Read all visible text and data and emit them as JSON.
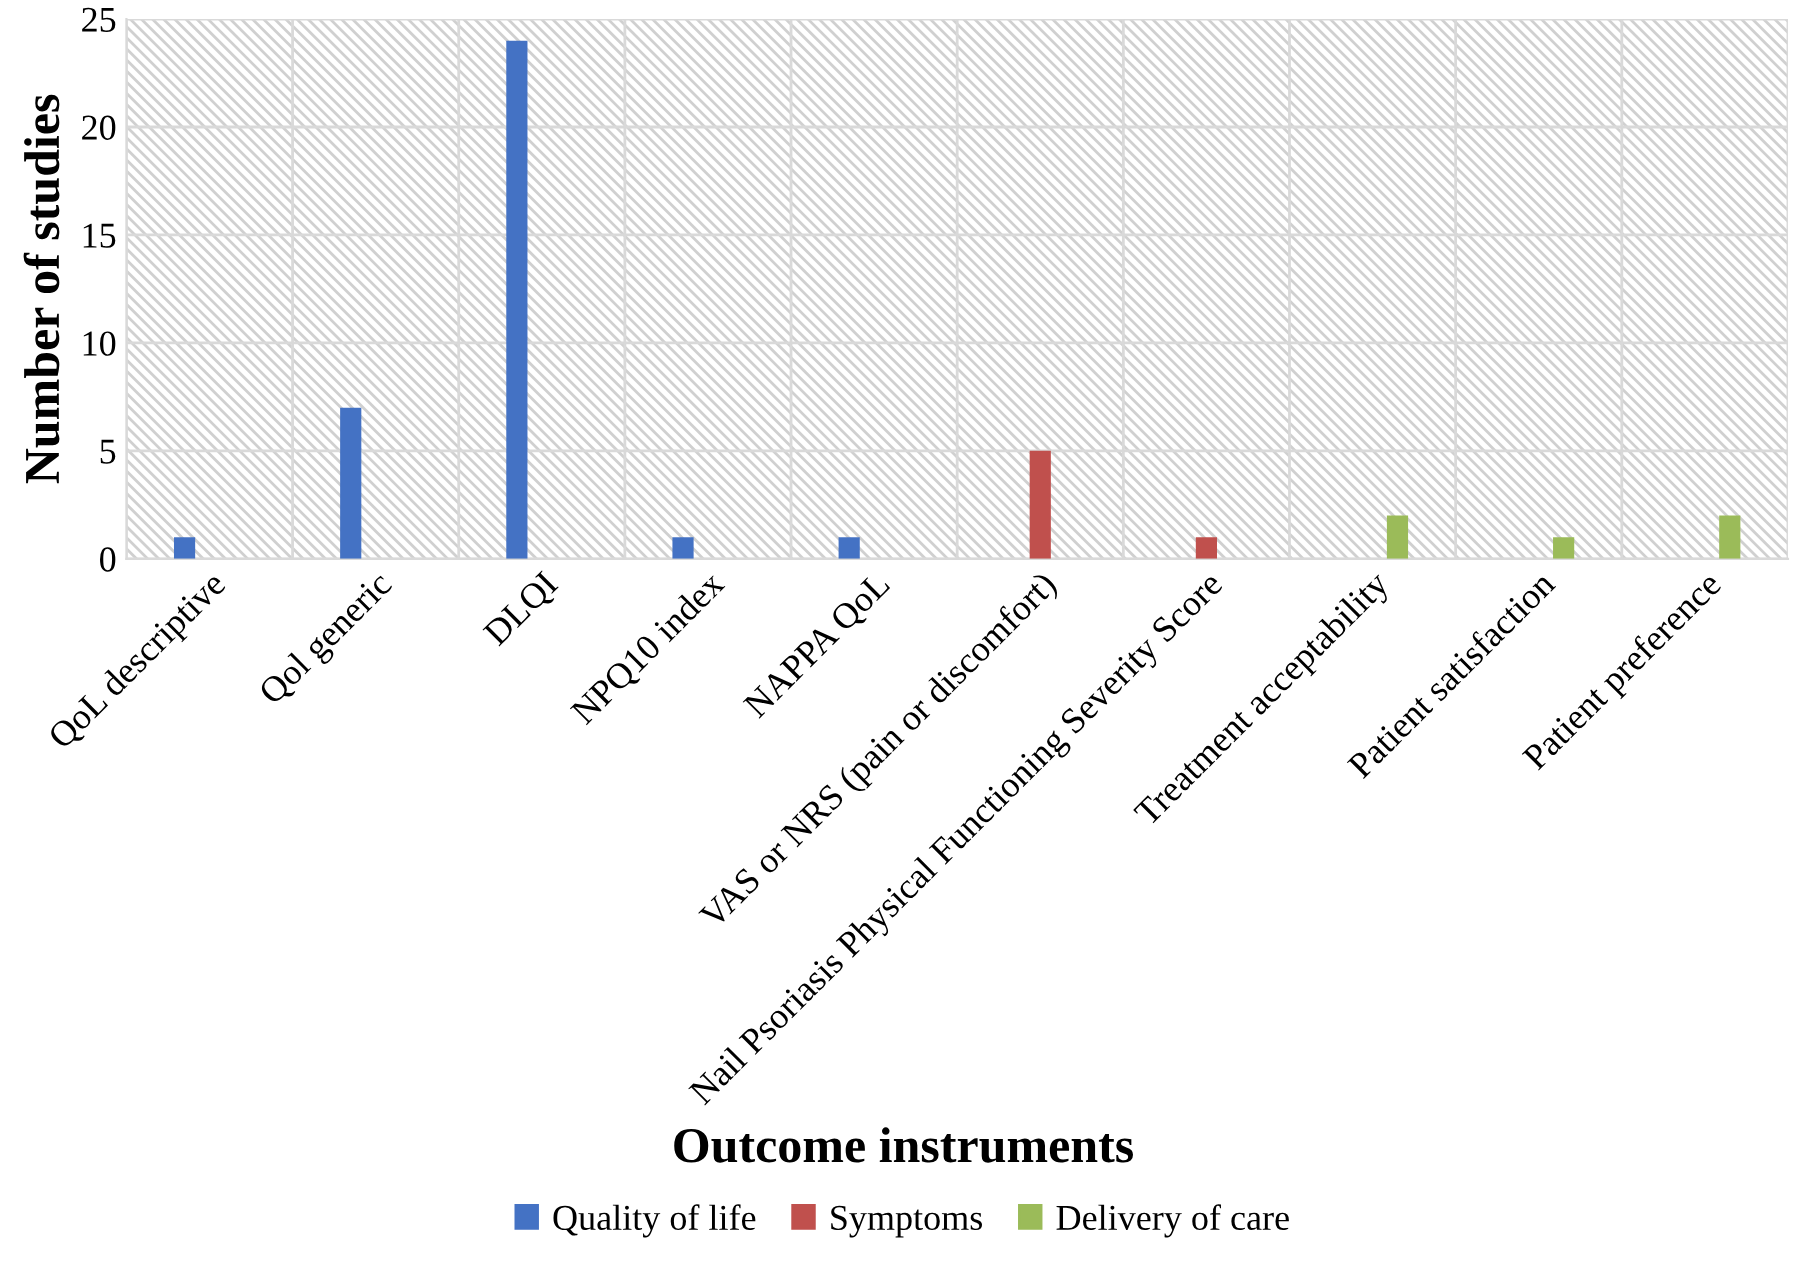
{
  "chart_data": {
    "type": "bar",
    "xlabel": "Outcome instruments",
    "ylabel": "Number of studies",
    "categories": [
      "QoL descriptive",
      "Qol generic",
      "DLQI",
      "NPQ10 index",
      "NAPPA QoL",
      "VAS or NRS (pain or discomfort)",
      "Nail Psoriasis Physical Functioning Severity Score",
      "Treatment acceptability",
      "Patient satisfaction",
      "Patient preference"
    ],
    "series": [
      {
        "name": "Quality of life",
        "color": "#4472c4",
        "values": [
          1,
          7,
          24,
          1,
          1,
          null,
          null,
          null,
          null,
          null
        ]
      },
      {
        "name": "Symptoms",
        "color": "#c0504d",
        "values": [
          null,
          null,
          null,
          null,
          null,
          5,
          1,
          null,
          null,
          null
        ]
      },
      {
        "name": "Delivery of care",
        "color": "#9bbb59",
        "values": [
          null,
          null,
          null,
          null,
          null,
          null,
          null,
          2,
          1,
          2
        ]
      }
    ],
    "ylim": [
      0,
      25
    ],
    "yticks": [
      0,
      5,
      10,
      15,
      20,
      25
    ],
    "grid": true,
    "legend": "bottom"
  }
}
